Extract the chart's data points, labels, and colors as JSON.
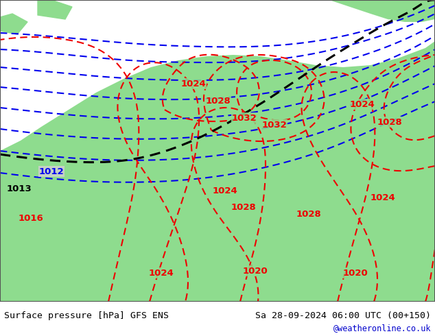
{
  "title_left": "Surface pressure [hPa] GFS ENS",
  "title_right": "Sa 28-09-2024 06:00 UTC (00+150)",
  "credit": "@weatheronline.co.uk",
  "bg_gray": "#d0d0d0",
  "land_green": "#8edc8e",
  "blue": "#0000ee",
  "red": "#ee0000",
  "black": "#000000",
  "credit_blue": "#0000cc",
  "coast_gray": "#888888"
}
